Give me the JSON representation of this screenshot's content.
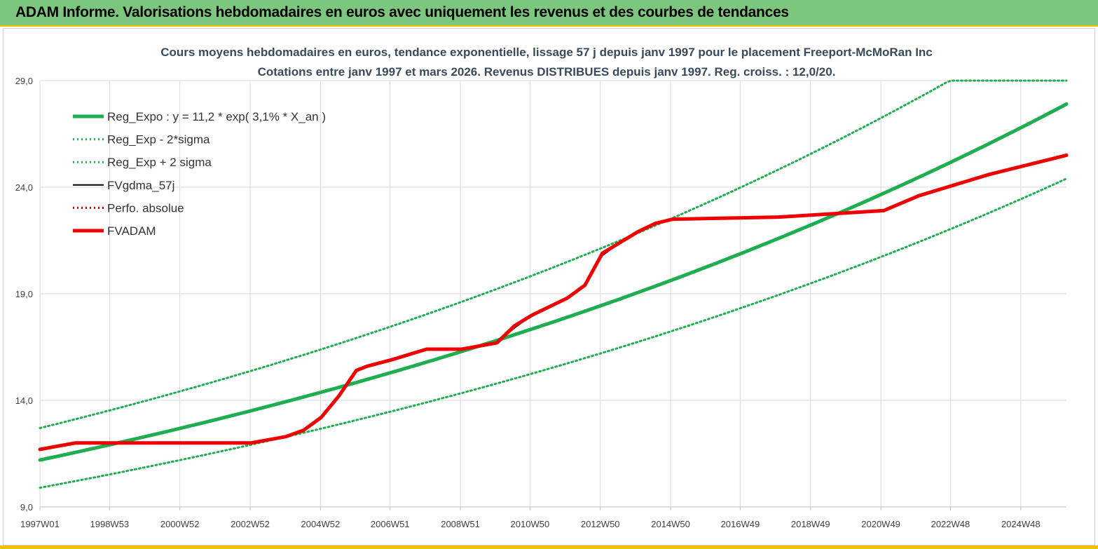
{
  "header": {
    "title": "ADAM Informe. Valorisations hebdomadaires en euros avec uniquement les revenus et des courbes de tendances"
  },
  "chart_data": {
    "type": "line",
    "title": "Cours moyens hebdomadaires en euros, tendance exponentielle, lissage 57 j depuis janv 1997 pour le placement Freeport-McMoRan Inc",
    "subtitle": "Cotations entre janv 1997 et mars 2026. Revenus DISTRIBUES depuis janv 1997. Reg. croiss. : 12,0/20.",
    "xlabel": "",
    "ylabel": "",
    "ylim": [
      9.0,
      29.0
    ],
    "xlim": [
      1997.0,
      2026.2
    ],
    "y_ticks": [
      "9,0",
      "14,0",
      "19,0",
      "24,0",
      "29,0"
    ],
    "x_ticks": [
      {
        "label": "1997W01",
        "x": 1997.0
      },
      {
        "label": "1998W53",
        "x": 1998.98
      },
      {
        "label": "2000W52",
        "x": 2000.98
      },
      {
        "label": "2002W52",
        "x": 2002.98
      },
      {
        "label": "2004W52",
        "x": 2004.98
      },
      {
        "label": "2006W51",
        "x": 2006.96
      },
      {
        "label": "2008W51",
        "x": 2008.96
      },
      {
        "label": "2010W50",
        "x": 2010.94
      },
      {
        "label": "2012W50",
        "x": 2012.94
      },
      {
        "label": "2014W50",
        "x": 2014.94
      },
      {
        "label": "2016W49",
        "x": 2016.92
      },
      {
        "label": "2018W49",
        "x": 2018.92
      },
      {
        "label": "2020W49",
        "x": 2020.92
      },
      {
        "label": "2022W48",
        "x": 2022.9
      },
      {
        "label": "2024W48",
        "x": 2024.9
      }
    ],
    "grid": true,
    "legend_position": "top-left",
    "series": [
      {
        "name": "Reg_Expo : y = 11,2 * exp( 3,1% *  X_an )",
        "color": "#1fae4f",
        "style": "solid-thick",
        "x": [
          1997.0,
          2026.2
        ],
        "y": [
          11.2,
          27.9
        ],
        "model": "exponential"
      },
      {
        "name": "Reg_Exp - 2*sigma",
        "color": "#1fae4f",
        "style": "dotted",
        "x": [
          1997.0,
          2026.2
        ],
        "y": [
          9.9,
          24.4
        ],
        "model": "exponential"
      },
      {
        "name": "Reg_Exp + 2 sigma",
        "color": "#1fae4f",
        "style": "dotted",
        "x": [
          1997.0,
          2022.0,
          2022.0,
          2026.2
        ],
        "y": [
          12.7,
          28.2,
          29.0,
          29.0
        ],
        "model": "exponential-capped",
        "cap": 29.0
      },
      {
        "name": "FVgdma_57j",
        "color": "#000000",
        "style": "solid",
        "x": [
          1997.0,
          1998.0,
          2003.0,
          2004.0,
          2004.5,
          2005.0,
          2005.5,
          2006.0,
          2006.3,
          2007.0,
          2008.0,
          2009.0,
          2010.0,
          2010.5,
          2011.0,
          2012.0,
          2012.5,
          2013.0,
          2013.5,
          2014.0,
          2014.5,
          2015.0,
          2018.0,
          2020.0,
          2021.0,
          2022.0,
          2024.0,
          2026.2
        ],
        "y": [
          11.7,
          12.0,
          12.0,
          12.3,
          12.6,
          13.2,
          14.2,
          15.4,
          15.6,
          15.9,
          16.4,
          16.4,
          16.7,
          17.4,
          18.0,
          18.8,
          19.4,
          20.8,
          21.4,
          21.9,
          22.3,
          22.5,
          22.6,
          22.8,
          22.9,
          23.6,
          24.6,
          25.5
        ]
      },
      {
        "name": "Perfo. absolue",
        "color": "#c00000",
        "style": "dotted",
        "x": [],
        "y": []
      },
      {
        "name": "FVADAM",
        "color": "#ee0000",
        "style": "solid-thick",
        "x": [
          1997.0,
          1998.0,
          2003.0,
          2004.0,
          2004.5,
          2005.0,
          2005.5,
          2006.0,
          2006.3,
          2007.0,
          2008.0,
          2009.0,
          2010.0,
          2010.5,
          2011.0,
          2012.0,
          2012.5,
          2013.0,
          2013.5,
          2014.0,
          2014.5,
          2015.0,
          2018.0,
          2020.0,
          2021.0,
          2022.0,
          2024.0,
          2026.2
        ],
        "y": [
          11.7,
          12.0,
          12.0,
          12.3,
          12.6,
          13.2,
          14.2,
          15.4,
          15.6,
          15.9,
          16.4,
          16.4,
          16.7,
          17.5,
          18.0,
          18.8,
          19.4,
          20.9,
          21.4,
          21.9,
          22.3,
          22.5,
          22.6,
          22.8,
          22.9,
          23.6,
          24.6,
          25.5
        ]
      }
    ]
  }
}
